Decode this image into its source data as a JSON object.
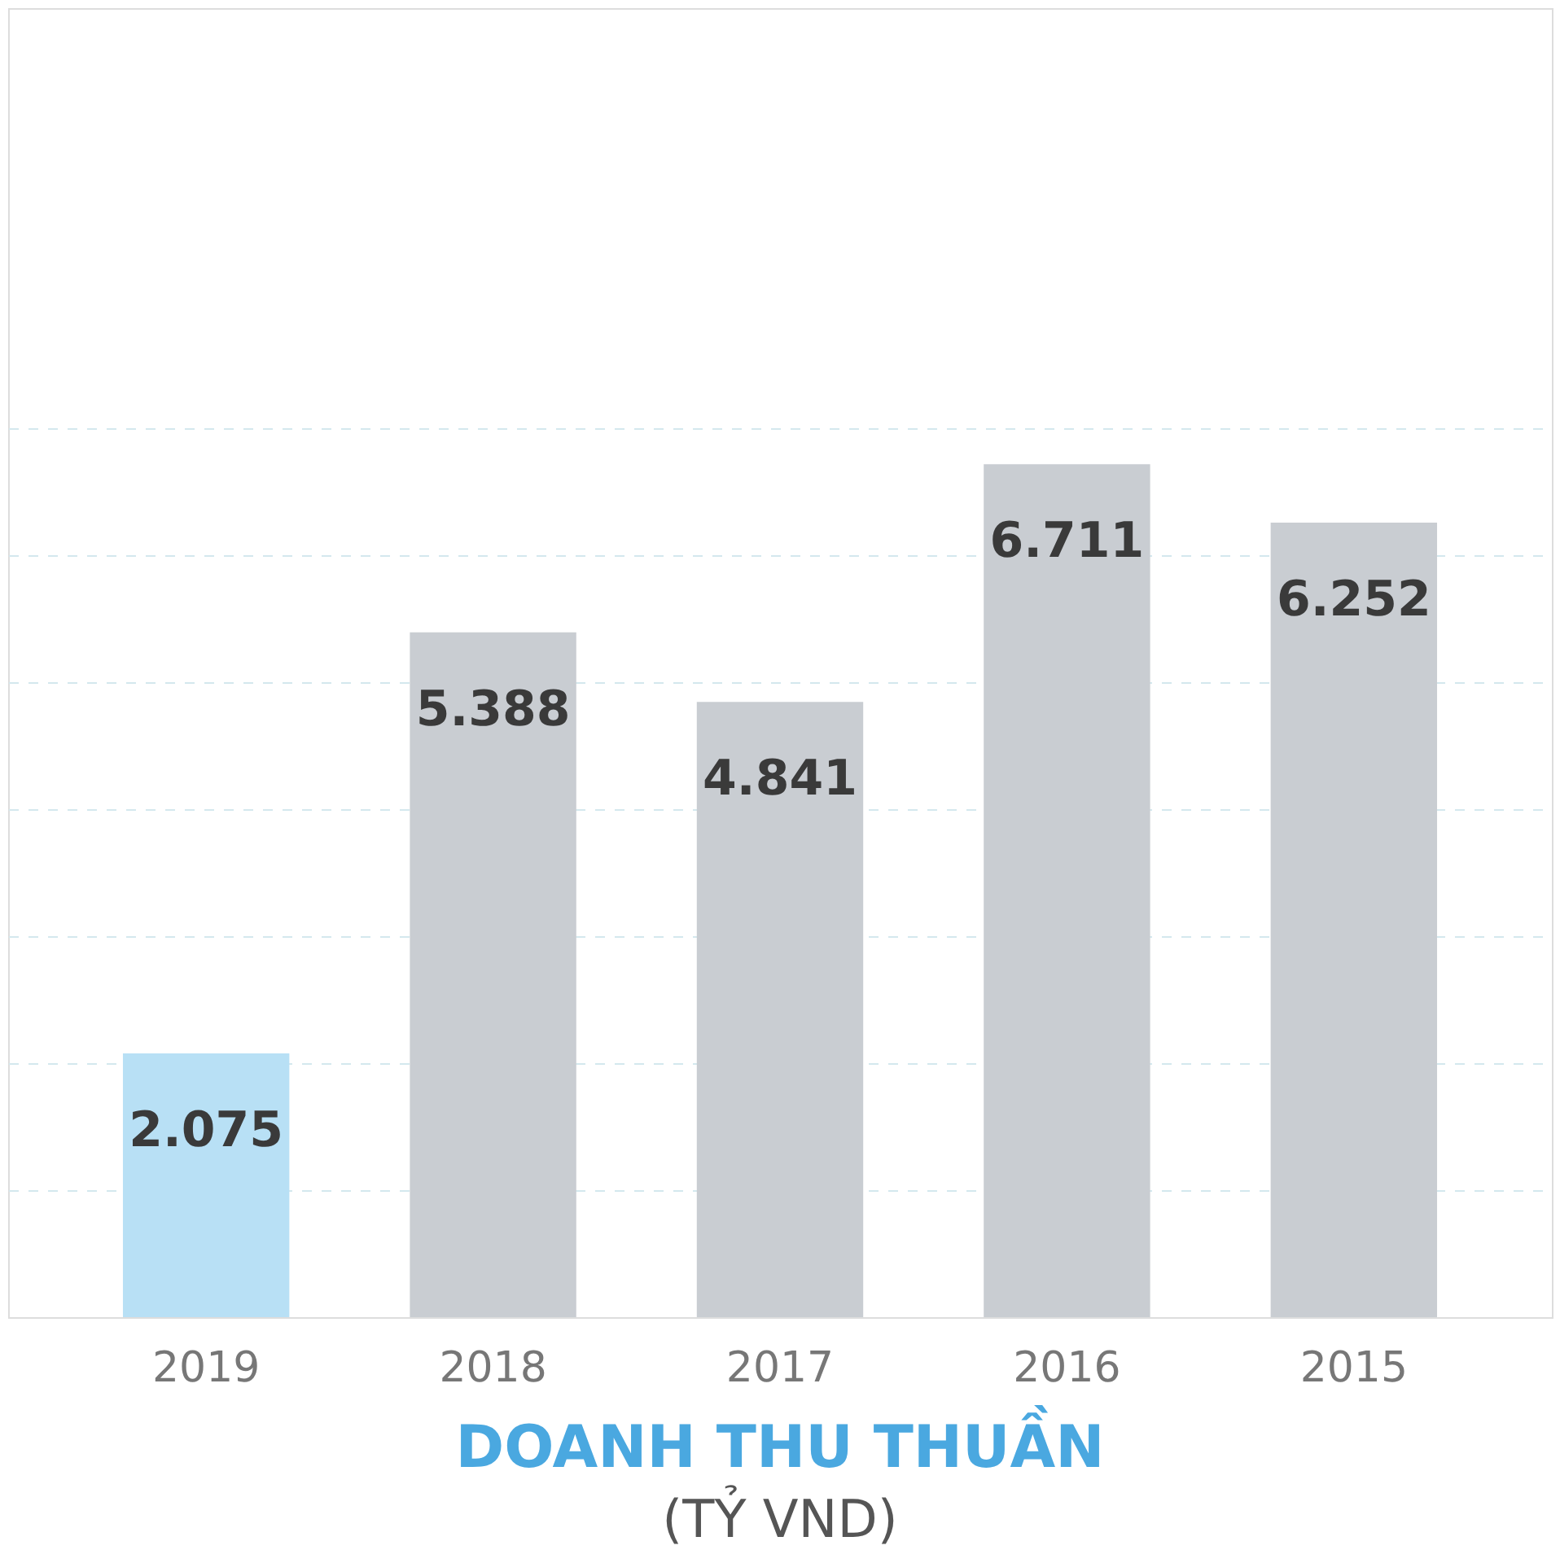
{
  "chart_data": {
    "type": "bar",
    "title": "DOANH THU THUẦN",
    "subtitle": "(TỶ VND)",
    "categories": [
      "2019",
      "2018",
      "2017",
      "2016",
      "2015"
    ],
    "values": [
      2075,
      5388,
      4841,
      6711,
      6252
    ],
    "value_labels": [
      "2.075",
      "5.388",
      "4.841",
      "6.711",
      "6.252"
    ],
    "colors": [
      "#b8e0f5",
      "#c9cdd2",
      "#c9cdd2",
      "#c9cdd2",
      "#c9cdd2"
    ],
    "ylim": [
      0,
      10300
    ],
    "yticks": [
      {
        "value": 1000,
        "label": null
      },
      {
        "value": 2000,
        "label": null
      },
      {
        "value": 3000,
        "label": null
      },
      {
        "value": 4000,
        "label": null
      },
      {
        "value": 5000,
        "label": null
      },
      {
        "value": 6000,
        "label": null
      },
      {
        "value": 7000,
        "label": null
      }
    ],
    "grid": "y",
    "tick_labels": "x"
  }
}
